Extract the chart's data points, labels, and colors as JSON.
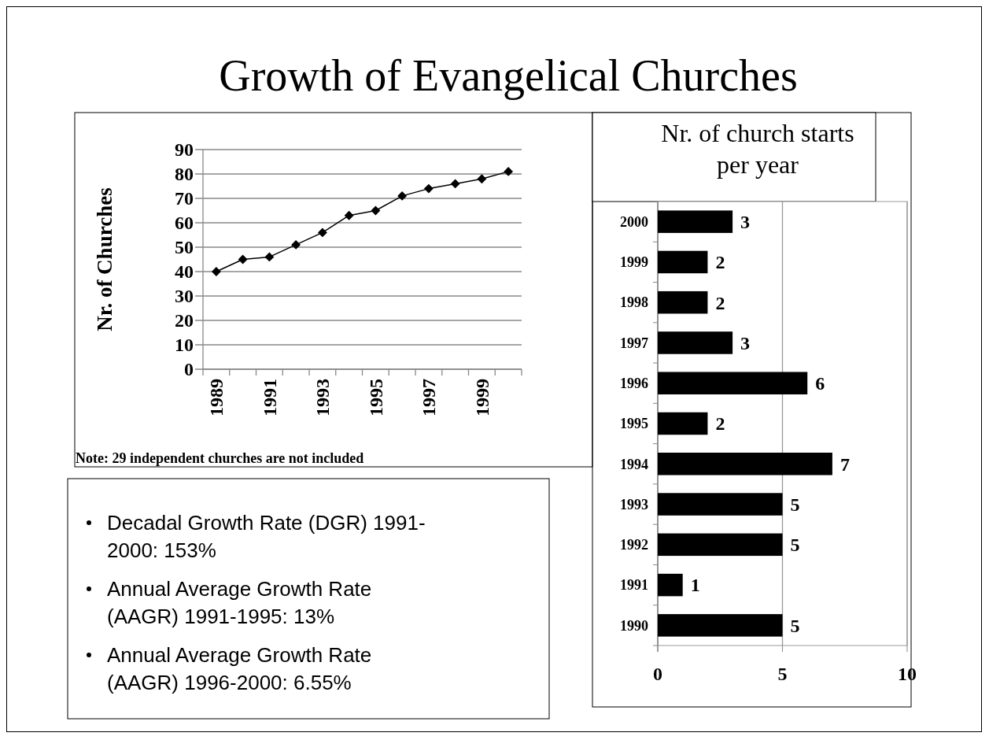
{
  "chart_data": [
    {
      "type": "line",
      "title": "Growth of Evangelical Churches",
      "ylabel": "Nr. of Churches",
      "categories": [
        "1989",
        null,
        "1991",
        null,
        "1993",
        null,
        "1995",
        null,
        "1997",
        null,
        "1999",
        null
      ],
      "series": [
        {
          "color": "#000000",
          "values": [
            40,
            45,
            46,
            51,
            56,
            63,
            65,
            71,
            74,
            76,
            78,
            81
          ]
        }
      ],
      "ylim": [
        0,
        90
      ],
      "yticks": [
        0,
        10,
        20,
        30,
        40,
        50,
        60,
        70,
        80,
        90
      ],
      "grid": "y",
      "marker": "diamond",
      "line_style": "solid",
      "annotations": [
        "Note: 29 independent churches are not included"
      ]
    },
    {
      "type": "bar",
      "orientation": "horizontal",
      "title": "Nr. of church starts per year",
      "categories": [
        "2000",
        "1999",
        "1998",
        "1997",
        "1996",
        "1995",
        "1994",
        "1993",
        "1992",
        "1991",
        "1990"
      ],
      "values": [
        3,
        2,
        2,
        3,
        6,
        2,
        7,
        5,
        5,
        1,
        5
      ],
      "color": "#000000",
      "xlim": [
        0,
        10
      ],
      "xticks": [
        0,
        5,
        10
      ],
      "grid": "x",
      "data_labels": true
    },
    {
      "type": "other",
      "annotations": [
        "Decadal Growth Rate (DGR) 1991-2000: 153%",
        "Annual Average Growth Rate (AAGR) 1991-1995: 13%",
        "Annual Average Growth Rate (AAGR) 1996-2000: 6.55%"
      ]
    }
  ]
}
